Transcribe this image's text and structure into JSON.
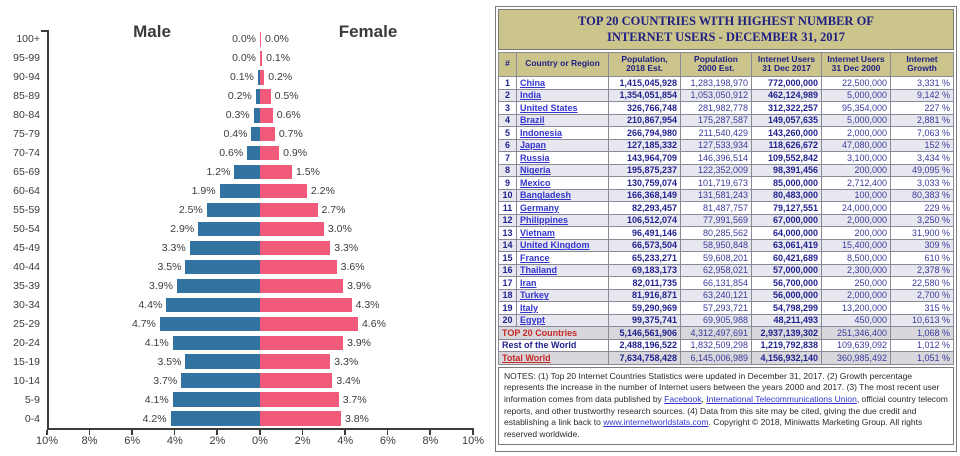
{
  "chart_data": [
    {
      "type": "bar",
      "subtype": "population-pyramid",
      "title_left": "Male",
      "title_right": "Female",
      "age_groups": [
        "100+",
        "95-99",
        "90-94",
        "85-89",
        "80-84",
        "75-79",
        "70-74",
        "65-69",
        "60-64",
        "55-59",
        "50-54",
        "45-49",
        "40-44",
        "35-39",
        "30-34",
        "25-29",
        "20-24",
        "15-19",
        "10-14",
        "5-9",
        "0-4"
      ],
      "series": [
        {
          "name": "Male",
          "values": [
            0.0,
            0.0,
            0.1,
            0.2,
            0.3,
            0.4,
            0.6,
            1.2,
            1.9,
            2.5,
            2.9,
            3.3,
            3.5,
            3.9,
            4.4,
            4.7,
            4.1,
            3.5,
            3.7,
            4.1,
            4.2
          ]
        },
        {
          "name": "Female",
          "values": [
            0.0,
            0.1,
            0.2,
            0.5,
            0.6,
            0.7,
            0.9,
            1.5,
            2.2,
            2.7,
            3.0,
            3.3,
            3.6,
            3.9,
            4.3,
            4.6,
            3.9,
            3.3,
            3.4,
            3.7,
            3.8
          ]
        }
      ],
      "x_tick_labels": [
        "10%",
        "8%",
        "6%",
        "4%",
        "2%",
        "0%",
        "2%",
        "4%",
        "6%",
        "8%",
        "10%"
      ],
      "xlim_pct": [
        -10,
        10
      ],
      "grid": false,
      "colors": {
        "male_bar": "#3273A1",
        "female_bar": "#F25A7C",
        "axis": "#3c3c3c"
      }
    },
    {
      "type": "table",
      "title_line1": "TOP 20 COUNTRIES WITH HIGHEST NUMBER OF",
      "title_line2": "INTERNET USERS - DECEMBER 31, 2017",
      "columns": [
        {
          "label": "#"
        },
        {
          "label": "Country or Region"
        },
        {
          "label": "Population,\n2018 Est."
        },
        {
          "label": "Population\n2000 Est."
        },
        {
          "label": "Internet Users\n31 Dec 2017"
        },
        {
          "label": "Internet Users\n31 Dec 2000"
        },
        {
          "label": "Internet\nGrowth"
        }
      ],
      "rows": [
        {
          "rank": "1",
          "country": "China",
          "pop2018": "1,415,045,928",
          "pop2000": "1,283,198,970",
          "users2017": "772,000,000",
          "users2000": "22,500,000",
          "growth": "3,331 %"
        },
        {
          "rank": "2",
          "country": "India",
          "pop2018": "1,354,051,854",
          "pop2000": "1,053,050,912",
          "users2017": "462,124,989",
          "users2000": "5,000,000",
          "growth": "9,142 %"
        },
        {
          "rank": "3",
          "country": "United States",
          "pop2018": "326,766,748",
          "pop2000": "281,982,778",
          "users2017": "312,322,257",
          "users2000": "95,354,000",
          "growth": "227 %"
        },
        {
          "rank": "4",
          "country": "Brazil",
          "pop2018": "210,867,954",
          "pop2000": "175,287,587",
          "users2017": "149,057,635",
          "users2000": "5,000,000",
          "growth": "2,881 %"
        },
        {
          "rank": "5",
          "country": "Indonesia",
          "pop2018": "266,794,980",
          "pop2000": "211,540,429",
          "users2017": "143,260,000",
          "users2000": "2,000,000",
          "growth": "7,063 %"
        },
        {
          "rank": "6",
          "country": "Japan",
          "pop2018": "127,185,332",
          "pop2000": "127,533,934",
          "users2017": "118,626,672",
          "users2000": "47,080,000",
          "growth": "152 %"
        },
        {
          "rank": "7",
          "country": "Russia",
          "pop2018": "143,964,709",
          "pop2000": "146,396,514",
          "users2017": "109,552,842",
          "users2000": "3,100,000",
          "growth": "3,434 %"
        },
        {
          "rank": "8",
          "country": "Nigeria",
          "pop2018": "195,875,237",
          "pop2000": "122,352,009",
          "users2017": "98,391,456",
          "users2000": "200,000",
          "growth": "49,095 %"
        },
        {
          "rank": "9",
          "country": "Mexico",
          "pop2018": "130,759,074",
          "pop2000": "101,719,673",
          "users2017": "85,000,000",
          "users2000": "2,712,400",
          "growth": "3,033 %"
        },
        {
          "rank": "10",
          "country": "Bangladesh",
          "pop2018": "166,368,149",
          "pop2000": "131,581,243",
          "users2017": "80,483,000",
          "users2000": "100,000",
          "growth": "80,383 %"
        },
        {
          "rank": "11",
          "country": "Germany",
          "pop2018": "82,293,457",
          "pop2000": "81,487,757",
          "users2017": "79,127,551",
          "users2000": "24,000,000",
          "growth": "229 %"
        },
        {
          "rank": "12",
          "country": "Philippines",
          "pop2018": "106,512,074",
          "pop2000": "77,991,569",
          "users2017": "67,000,000",
          "users2000": "2,000,000",
          "growth": "3,250 %"
        },
        {
          "rank": "13",
          "country": "Vietnam",
          "pop2018": "96,491,146",
          "pop2000": "80,285,562",
          "users2017": "64,000,000",
          "users2000": "200,000",
          "growth": "31,900 %"
        },
        {
          "rank": "14",
          "country": "United Kingdom",
          "pop2018": "66,573,504",
          "pop2000": "58,950,848",
          "users2017": "63,061,419",
          "users2000": "15,400,000",
          "growth": "309 %"
        },
        {
          "rank": "15",
          "country": "France",
          "pop2018": "65,233,271",
          "pop2000": "59,608,201",
          "users2017": "60,421,689",
          "users2000": "8,500,000",
          "growth": "610 %"
        },
        {
          "rank": "16",
          "country": "Thailand",
          "pop2018": "69,183,173",
          "pop2000": "62,958,021",
          "users2017": "57,000,000",
          "users2000": "2,300,000",
          "growth": "2,378 %"
        },
        {
          "rank": "17",
          "country": "Iran",
          "pop2018": "82,011,735",
          "pop2000": "66,131,854",
          "users2017": "56,700,000",
          "users2000": "250,000",
          "growth": "22,580 %"
        },
        {
          "rank": "18",
          "country": "Turkey",
          "pop2018": "81,916,871",
          "pop2000": "63,240,121",
          "users2017": "56,000,000",
          "users2000": "2,000,000",
          "growth": "2,700 %"
        },
        {
          "rank": "19",
          "country": "Italy",
          "pop2018": "59,290,969",
          "pop2000": "57,293,721",
          "users2017": "54,798,299",
          "users2000": "13,200,000",
          "growth": "315 %"
        },
        {
          "rank": "20",
          "country": "Egypt",
          "pop2018": "99,375,741",
          "pop2000": "69,905,988",
          "users2017": "48,211,493",
          "users2000": "450,000",
          "growth": "10,613 %"
        }
      ],
      "summary_rows": [
        {
          "label": "TOP 20 Countries",
          "label_style": "red",
          "underline": false,
          "shaded": true,
          "pop2018": "5,146,561,906",
          "pop2000": "4,312,497,691",
          "users2017": "2,937,139,302",
          "users2000": "251,346,400",
          "growth": "1,068 %"
        },
        {
          "label": "Rest of the World",
          "label_style": "navy",
          "underline": false,
          "shaded": false,
          "pop2018": "2,488,196,522",
          "pop2000": "1,832,509,298",
          "users2017": "1,219,792,838",
          "users2000": "109,639,092",
          "growth": "1,012 %"
        },
        {
          "label": "Total World",
          "label_style": "red",
          "underline": true,
          "shaded": true,
          "pop2018": "7,634,758,428",
          "pop2000": "6,145,006,989",
          "users2017": "4,156,932,140",
          "users2000": "360,985,492",
          "growth": "1,051 %"
        }
      ],
      "notes_parts": [
        {
          "text": "NOTES: (1) Top 20 Internet Countries Statistics were updated in December 31, 2017. (2) Growth percentage represents the increase in the number of Internet users between the years 2000 and 2017. (3) The most recent user information comes from data published by "
        },
        {
          "text": "Facebook",
          "link": true
        },
        {
          "text": ", "
        },
        {
          "text": "International Telecommunications Union",
          "link": true
        },
        {
          "text": ", official country telecom reports, and other trustworthy research sources. (4) Data from this site may be cited, giving the due credit and establishing a link back to "
        },
        {
          "text": "www.internetworldstats.com",
          "link": true
        },
        {
          "text": ". Copyright © 2018, Miniwatts Marketing Group. All rights reserved worldwide."
        }
      ],
      "colors": {
        "header_bg": "#CBC48B",
        "title_text": "#1F1F85",
        "link": "#3434CF",
        "summary_red": "#C62828",
        "row_alt_bg": "#E7E7EF",
        "summary_bg": "#D7D7DC"
      }
    }
  ]
}
